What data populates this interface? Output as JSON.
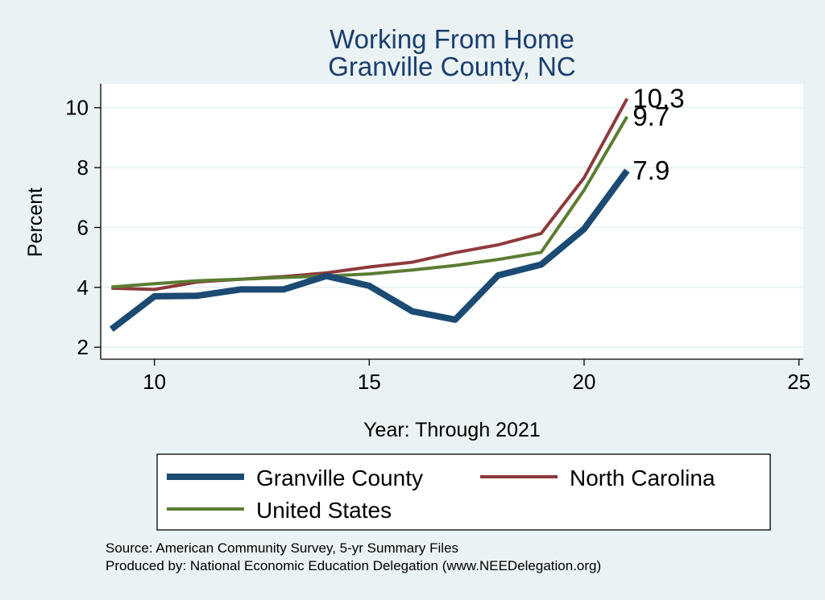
{
  "chart_data": {
    "type": "line",
    "title": [
      "Working From Home",
      "Granville County, NC"
    ],
    "xlabel": "Year: Through 2021",
    "ylabel": "Percent",
    "xlim": [
      8.75,
      25.1
    ],
    "ylim": [
      1.6,
      10.8
    ],
    "xticks": [
      10,
      15,
      20,
      25
    ],
    "yticks": [
      2,
      4,
      6,
      8,
      10
    ],
    "grid": true,
    "legend_position": "bottom",
    "x": [
      9,
      10,
      11,
      12,
      13,
      14,
      15,
      16,
      17,
      18,
      19,
      20,
      21
    ],
    "series": [
      {
        "name": "Granville County",
        "color": "#1b4a73",
        "values": [
          2.6,
          3.7,
          3.72,
          3.93,
          3.93,
          4.38,
          4.05,
          3.2,
          2.92,
          4.4,
          4.76,
          5.95,
          7.9
        ],
        "end_label": "7.9"
      },
      {
        "name": "North Carolina",
        "color": "#8e3a3c",
        "values": [
          3.97,
          3.93,
          4.18,
          4.27,
          4.36,
          4.48,
          4.68,
          4.84,
          5.16,
          5.42,
          5.8,
          7.66,
          10.3
        ],
        "end_label": "10.3"
      },
      {
        "name": "United States",
        "color": "#5a7d32",
        "values": [
          4.01,
          4.12,
          4.22,
          4.27,
          4.33,
          4.38,
          4.45,
          4.58,
          4.73,
          4.93,
          5.17,
          7.25,
          9.7
        ],
        "end_label": "9.7"
      }
    ],
    "source_notes": [
      "Source: American Community Survey, 5-yr Summary Files",
      "Produced by: National Economic Education Delegation (www.NEEDelegation.org)"
    ]
  }
}
